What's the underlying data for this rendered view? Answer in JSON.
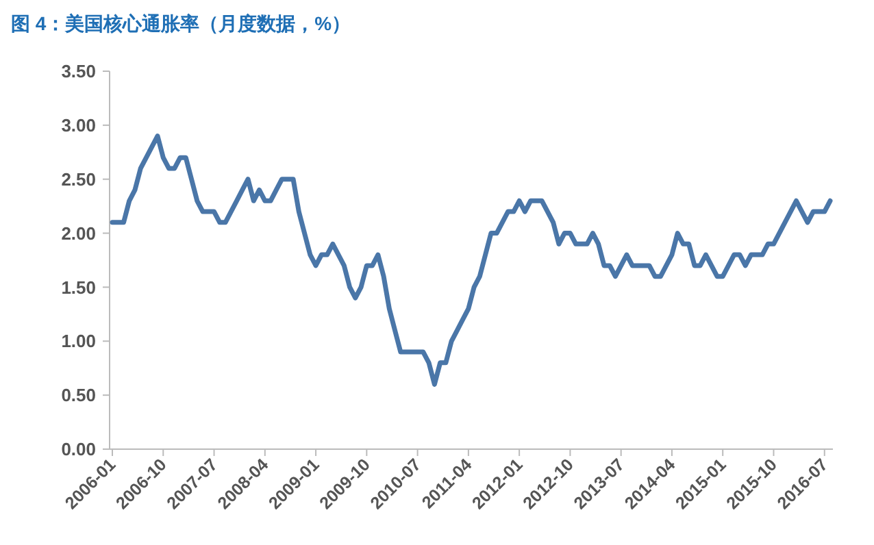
{
  "chart_data": {
    "type": "line",
    "title": "图 4：美国核心通胀率（月度数据，%）",
    "categories": [
      "2006-01",
      null,
      null,
      null,
      null,
      null,
      null,
      null,
      null,
      "2006-10",
      null,
      null,
      null,
      null,
      null,
      null,
      null,
      null,
      "2007-07",
      null,
      null,
      null,
      null,
      null,
      null,
      null,
      null,
      "2008-04",
      null,
      null,
      null,
      null,
      null,
      null,
      null,
      null,
      "2009-01",
      null,
      null,
      null,
      null,
      null,
      null,
      null,
      null,
      "2009-10",
      null,
      null,
      null,
      null,
      null,
      null,
      null,
      null,
      "2010-07",
      null,
      null,
      null,
      null,
      null,
      null,
      null,
      null,
      "2011-04",
      null,
      null,
      null,
      null,
      null,
      null,
      null,
      null,
      "2012-01",
      null,
      null,
      null,
      null,
      null,
      null,
      null,
      null,
      "2012-10",
      null,
      null,
      null,
      null,
      null,
      null,
      null,
      null,
      "2013-07",
      null,
      null,
      null,
      null,
      null,
      null,
      null,
      null,
      "2014-04",
      null,
      null,
      null,
      null,
      null,
      null,
      null,
      null,
      "2015-01",
      null,
      null,
      null,
      null,
      null,
      null,
      null,
      null,
      "2015-10",
      null,
      null,
      null,
      null,
      null,
      null,
      null,
      null,
      "2016-07",
      null
    ],
    "series": [
      {
        "color": "#4a76a8",
        "values": [
          2.1,
          2.1,
          2.1,
          2.3,
          2.4,
          2.6,
          2.7,
          2.8,
          2.9,
          2.7,
          2.6,
          2.6,
          2.7,
          2.7,
          2.5,
          2.3,
          2.2,
          2.2,
          2.2,
          2.1,
          2.1,
          2.2,
          2.3,
          2.4,
          2.5,
          2.3,
          2.4,
          2.3,
          2.3,
          2.4,
          2.5,
          2.5,
          2.5,
          2.2,
          2.0,
          1.8,
          1.7,
          1.8,
          1.8,
          1.9,
          1.8,
          1.7,
          1.5,
          1.4,
          1.5,
          1.7,
          1.7,
          1.8,
          1.6,
          1.3,
          1.1,
          0.9,
          0.9,
          0.9,
          0.9,
          0.9,
          0.8,
          0.6,
          0.8,
          0.8,
          1.0,
          1.1,
          1.2,
          1.3,
          1.5,
          1.6,
          1.8,
          2.0,
          2.0,
          2.1,
          2.2,
          2.2,
          2.3,
          2.2,
          2.3,
          2.3,
          2.3,
          2.2,
          2.1,
          1.9,
          2.0,
          2.0,
          1.9,
          1.9,
          1.9,
          2.0,
          1.9,
          1.7,
          1.7,
          1.6,
          1.7,
          1.8,
          1.7,
          1.7,
          1.7,
          1.7,
          1.6,
          1.6,
          1.7,
          1.8,
          2.0,
          1.9,
          1.9,
          1.7,
          1.7,
          1.8,
          1.7,
          1.6,
          1.6,
          1.7,
          1.8,
          1.8,
          1.7,
          1.8,
          1.8,
          1.8,
          1.9,
          1.9,
          2.0,
          2.1,
          2.2,
          2.3,
          2.2,
          2.1,
          2.2,
          2.2,
          2.2,
          2.3
        ]
      }
    ],
    "ylim": [
      0,
      3.5
    ],
    "yticks": [
      {
        "value": 0,
        "label": "0.00"
      },
      {
        "value": 0.5,
        "label": "0.50"
      },
      {
        "value": 1,
        "label": "1.00"
      },
      {
        "value": 1.5,
        "label": "1.50"
      },
      {
        "value": 2,
        "label": "2.00"
      },
      {
        "value": 2.5,
        "label": "2.50"
      },
      {
        "value": 3,
        "label": "3.00"
      },
      {
        "value": 3.5,
        "label": "3.50"
      }
    ],
    "grid": false,
    "marker": "none",
    "line_style": "solid"
  }
}
